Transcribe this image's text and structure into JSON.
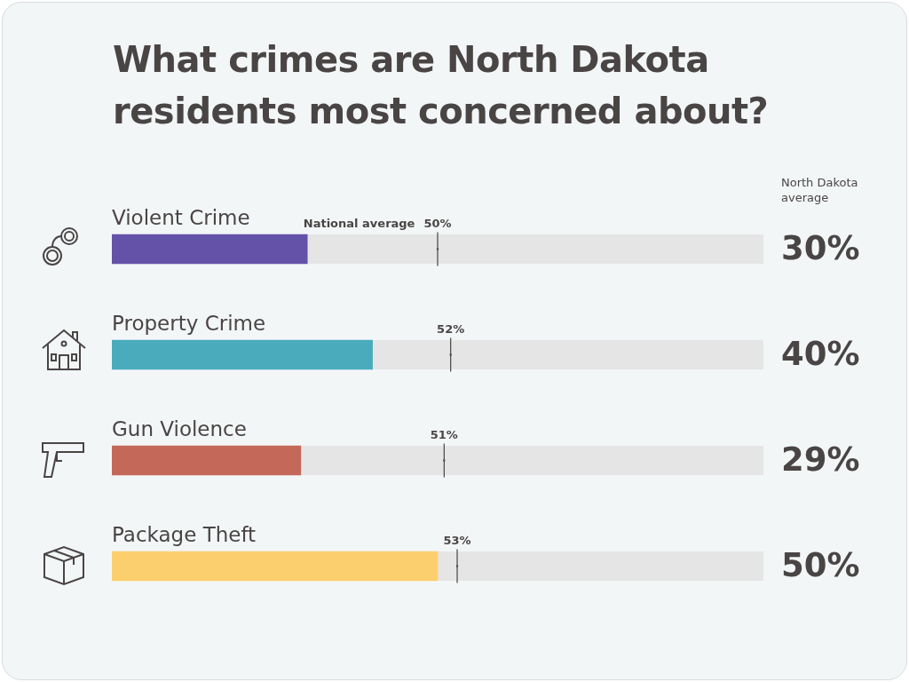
{
  "chart_data": {
    "type": "bar",
    "orientation": "horizontal",
    "title": "What crimes are North Dakota residents most concerned about?",
    "categories": [
      "Violent Crime",
      "Property Crime",
      "Gun Violence",
      "Package Theft"
    ],
    "xlim": [
      0,
      100
    ],
    "tick_labels": false,
    "legend": false,
    "grid": false,
    "annotations": [
      "North Dakota average",
      "National average"
    ],
    "series": [
      {
        "colors": [
          "#6452a8",
          "#4aabbd",
          "#c4695a",
          "#fccf6e"
        ],
        "values": [
          30,
          40,
          29,
          50
        ],
        "value_labels": [
          "30%",
          "40%",
          "29%",
          "50%"
        ]
      },
      {
        "type": "scatter",
        "color": "#4a4545",
        "values": [
          50,
          52,
          51,
          53
        ],
        "value_labels": [
          "50%",
          "52%",
          "51%",
          "53%"
        ]
      }
    ]
  }
}
